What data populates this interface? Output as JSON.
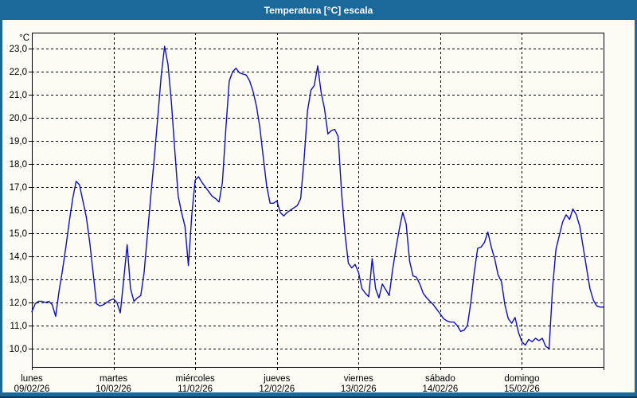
{
  "window": {
    "title": "Temperatura [°C] escala"
  },
  "colors": {
    "titlebar_bg": "#1B689B",
    "titlebar_text": "#FFFFFF",
    "window_border_dark": "#0B3C5F",
    "content_bg": "#FCFCF5",
    "grid": "#000000",
    "line": "#0D0DC4"
  },
  "chart_data": {
    "type": "line",
    "title": "Temperatura [°C] escala",
    "ylabel": "°C",
    "xlabel": "",
    "ylim": [
      10,
      23
    ],
    "grid": "dashed",
    "legend": "none",
    "points_per_day": 24,
    "x_days": [
      {
        "name": "lunes",
        "date": "09/02/26"
      },
      {
        "name": "martes",
        "date": "10/02/26"
      },
      {
        "name": "miércoles",
        "date": "11/02/26"
      },
      {
        "name": "jueves",
        "date": "12/02/26"
      },
      {
        "name": "viernes",
        "date": "13/02/26"
      },
      {
        "name": "sábado",
        "date": "14/02/26"
      },
      {
        "name": "domingo",
        "date": "15/02/26"
      }
    ],
    "y_ticks": {
      "values": [
        23,
        22,
        21,
        20,
        19,
        18,
        17,
        16,
        15,
        14,
        13,
        12,
        11,
        10
      ],
      "labels": [
        "23,0",
        "22,0",
        "21,0",
        "20,0",
        "19,0",
        "18,0",
        "17,0",
        "16,0",
        "15,0",
        "14,0",
        "13,0",
        "12,0",
        "11,0",
        "10,0"
      ]
    },
    "series": [
      {
        "name": "Temperatura",
        "unit": "°C",
        "color": "#0D0DC4",
        "sampling": "hourly",
        "values": [
          11.6,
          11.95,
          12.05,
          12.05,
          12.0,
          12.05,
          11.9,
          11.4,
          12.5,
          13.4,
          14.4,
          15.5,
          16.5,
          17.25,
          17.1,
          16.4,
          15.7,
          14.6,
          13.3,
          11.95,
          11.85,
          11.9,
          12.0,
          12.1,
          12.15,
          12.0,
          11.55,
          13.0,
          14.5,
          12.6,
          12.05,
          12.2,
          12.3,
          13.3,
          15.0,
          16.7,
          18.3,
          20.0,
          21.8,
          23.1,
          22.3,
          20.7,
          18.6,
          16.6,
          15.9,
          15.3,
          13.6,
          15.8,
          17.3,
          17.45,
          17.2,
          17.0,
          16.8,
          16.6,
          16.5,
          16.35,
          17.2,
          19.5,
          21.6,
          22.0,
          22.15,
          21.95,
          21.9,
          21.85,
          21.6,
          21.15,
          20.5,
          19.6,
          18.3,
          17.05,
          16.3,
          16.3,
          16.4,
          15.9,
          15.75,
          15.9,
          16.0,
          16.1,
          16.2,
          16.5,
          18.2,
          20.3,
          21.2,
          21.4,
          22.25,
          21.1,
          20.4,
          19.3,
          19.45,
          19.5,
          19.2,
          16.8,
          15.0,
          13.7,
          13.5,
          13.65,
          13.3,
          12.6,
          12.4,
          12.25,
          13.9,
          12.6,
          12.2,
          12.8,
          12.55,
          12.3,
          13.4,
          14.35,
          15.2,
          15.9,
          15.4,
          13.8,
          13.15,
          13.1,
          12.8,
          12.4,
          12.2,
          12.05,
          11.9,
          11.7,
          11.5,
          11.3,
          11.2,
          11.15,
          11.15,
          11.0,
          10.75,
          10.8,
          11.0,
          12.0,
          13.3,
          14.35,
          14.4,
          14.6,
          15.05,
          14.4,
          13.9,
          13.2,
          12.9,
          11.9,
          11.3,
          11.1,
          11.35,
          10.7,
          10.3,
          10.15,
          10.4,
          10.3,
          10.45,
          10.35,
          10.45,
          10.1,
          10.0,
          12.6,
          14.3,
          14.9,
          15.5,
          15.8,
          15.6,
          16.05,
          15.8,
          15.3,
          14.4,
          13.5,
          12.6,
          12.1,
          11.85,
          11.8,
          11.8
        ]
      }
    ]
  }
}
